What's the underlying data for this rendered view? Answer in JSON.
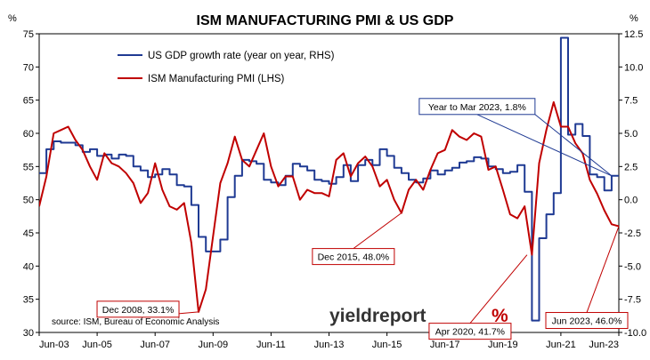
{
  "chart_data": {
    "type": "line",
    "title": "ISM MANUFACTURING PMI & US GDP",
    "left_unit": "%",
    "right_unit": "%",
    "source": "source: ISM, Bureau of Economic Analysis",
    "brand": {
      "word": "yieldreport",
      "symbol": "%"
    },
    "x_axis": {
      "start": "2003-06",
      "end": "2023-06",
      "tick_labels": [
        "Jun-03",
        "Jun-05",
        "Jun-07",
        "Jun-09",
        "Jun-11",
        "Jun-13",
        "Jun-15",
        "Jun-17",
        "Jun-19",
        "Jun-21",
        "Jun-23"
      ],
      "tick_dates": [
        "2003-06",
        "2005-06",
        "2007-06",
        "2009-06",
        "2011-06",
        "2013-06",
        "2015-06",
        "2017-06",
        "2019-06",
        "2021-06",
        "2023-06"
      ]
    },
    "y_left": {
      "range": [
        30,
        75
      ],
      "ticks": [
        "30",
        "35",
        "40",
        "45",
        "50",
        "55",
        "60",
        "65",
        "70",
        "75"
      ]
    },
    "y_right": {
      "range": [
        -10,
        12.5
      ],
      "ticks": [
        "-10.0",
        "-7.5",
        "-5.0",
        "-2.5",
        "0.0",
        "2.5",
        "5.0",
        "7.5",
        "10.0",
        "12.5"
      ]
    },
    "grid": false,
    "legend_position": "top-left",
    "series": [
      {
        "name": "US GDP growth rate (year on year, RHS)",
        "axis": "right",
        "color": "#1f3a93",
        "step": true,
        "x": [
          "2003-06",
          "2003-09",
          "2003-12",
          "2004-03",
          "2004-06",
          "2004-09",
          "2004-12",
          "2005-03",
          "2005-06",
          "2005-09",
          "2005-12",
          "2006-03",
          "2006-06",
          "2006-09",
          "2006-12",
          "2007-03",
          "2007-06",
          "2007-09",
          "2007-12",
          "2008-03",
          "2008-06",
          "2008-09",
          "2008-12",
          "2009-03",
          "2009-06",
          "2009-09",
          "2009-12",
          "2010-03",
          "2010-06",
          "2010-09",
          "2010-12",
          "2011-03",
          "2011-06",
          "2011-09",
          "2011-12",
          "2012-03",
          "2012-06",
          "2012-09",
          "2012-12",
          "2013-03",
          "2013-06",
          "2013-09",
          "2013-12",
          "2014-03",
          "2014-06",
          "2014-09",
          "2014-12",
          "2015-03",
          "2015-06",
          "2015-09",
          "2015-12",
          "2016-03",
          "2016-06",
          "2016-09",
          "2016-12",
          "2017-03",
          "2017-06",
          "2017-09",
          "2017-12",
          "2018-03",
          "2018-06",
          "2018-09",
          "2018-12",
          "2019-03",
          "2019-06",
          "2019-09",
          "2019-12",
          "2020-03",
          "2020-06",
          "2020-09",
          "2020-12",
          "2021-03",
          "2021-06",
          "2021-09",
          "2021-12",
          "2022-03",
          "2022-06",
          "2022-09",
          "2022-12",
          "2023-03",
          "2023-06"
        ],
        "values": [
          2.0,
          3.8,
          4.4,
          4.3,
          4.3,
          4.1,
          3.6,
          3.8,
          3.3,
          3.4,
          3.1,
          3.4,
          3.3,
          2.5,
          2.2,
          1.7,
          1.9,
          2.3,
          1.9,
          1.1,
          1.0,
          -0.4,
          -2.8,
          -3.9,
          -3.9,
          -3.0,
          0.2,
          1.8,
          3.0,
          2.9,
          2.7,
          1.5,
          1.3,
          1.1,
          1.8,
          2.7,
          2.5,
          2.2,
          1.5,
          1.4,
          1.2,
          1.7,
          2.6,
          1.4,
          2.6,
          3.0,
          2.6,
          3.8,
          3.3,
          2.4,
          2.0,
          1.5,
          1.3,
          1.6,
          2.2,
          1.9,
          2.2,
          2.4,
          2.8,
          2.9,
          3.2,
          3.1,
          2.5,
          2.3,
          2.0,
          2.1,
          2.6,
          0.6,
          -9.1,
          -2.9,
          -1.1,
          0.5,
          12.2,
          4.9,
          5.7,
          4.8,
          1.9,
          1.7,
          0.7,
          1.8,
          1.8
        ]
      },
      {
        "name": "ISM Manufacturing PMI (LHS)",
        "axis": "left",
        "color": "#c00000",
        "step": false,
        "x": [
          "2003-06",
          "2003-09",
          "2003-12",
          "2004-03",
          "2004-06",
          "2004-09",
          "2004-12",
          "2005-03",
          "2005-06",
          "2005-09",
          "2005-12",
          "2006-03",
          "2006-06",
          "2006-09",
          "2006-12",
          "2007-03",
          "2007-06",
          "2007-09",
          "2007-12",
          "2008-03",
          "2008-06",
          "2008-09",
          "2008-12",
          "2009-03",
          "2009-06",
          "2009-09",
          "2009-12",
          "2010-03",
          "2010-06",
          "2010-09",
          "2010-12",
          "2011-03",
          "2011-06",
          "2011-09",
          "2011-12",
          "2012-03",
          "2012-06",
          "2012-09",
          "2012-12",
          "2013-03",
          "2013-06",
          "2013-09",
          "2013-12",
          "2014-03",
          "2014-06",
          "2014-09",
          "2014-12",
          "2015-03",
          "2015-06",
          "2015-09",
          "2015-12",
          "2016-03",
          "2016-06",
          "2016-09",
          "2016-12",
          "2017-03",
          "2017-06",
          "2017-09",
          "2017-12",
          "2018-03",
          "2018-06",
          "2018-09",
          "2018-12",
          "2019-03",
          "2019-06",
          "2019-09",
          "2019-12",
          "2020-03",
          "2020-06",
          "2020-09",
          "2020-12",
          "2021-03",
          "2021-06",
          "2021-09",
          "2021-12",
          "2022-03",
          "2022-06",
          "2022-09",
          "2022-12",
          "2023-03",
          "2023-06"
        ],
        "values": [
          49.0,
          53.5,
          60.0,
          60.5,
          61.0,
          59.0,
          57.5,
          55.0,
          53.0,
          57.0,
          55.5,
          55.0,
          54.0,
          52.5,
          49.5,
          51.0,
          55.5,
          51.5,
          49.0,
          48.5,
          49.5,
          43.5,
          33.1,
          36.5,
          44.5,
          52.5,
          55.5,
          59.5,
          56.0,
          55.0,
          57.5,
          60.0,
          55.0,
          52.0,
          53.5,
          53.5,
          50.0,
          51.5,
          51.0,
          51.0,
          50.5,
          56.0,
          57.0,
          53.5,
          55.5,
          56.5,
          55.0,
          52.0,
          53.0,
          50.0,
          48.0,
          51.5,
          53.0,
          51.5,
          54.5,
          57.0,
          57.5,
          60.5,
          59.5,
          59.0,
          60.0,
          59.5,
          54.5,
          55.0,
          51.5,
          47.8,
          47.2,
          49.0,
          41.7,
          55.5,
          60.5,
          64.7,
          61.0,
          61.0,
          58.5,
          57.0,
          53.0,
          50.9,
          48.4,
          46.3,
          46.0
        ]
      }
    ],
    "annotations": [
      {
        "text": "Dec 2008, 33.1%",
        "x": "2008-12",
        "value": 33.1,
        "axis": "left",
        "color": "#c00000"
      },
      {
        "text": "Dec 2015, 48.0%",
        "x": "2015-12",
        "value": 48.0,
        "axis": "left",
        "color": "#c00000"
      },
      {
        "text": "Apr 2020, 41.7%",
        "x": "2020-04",
        "value": 41.7,
        "axis": "left",
        "color": "#c00000"
      },
      {
        "text": "Jun 2023, 46.0%",
        "x": "2023-06",
        "value": 46.0,
        "axis": "left",
        "color": "#c00000"
      },
      {
        "text": "Year to Mar 2023, 1.8%",
        "x": "2023-03",
        "value": 1.8,
        "axis": "right",
        "color": "#1f3a93"
      }
    ]
  }
}
